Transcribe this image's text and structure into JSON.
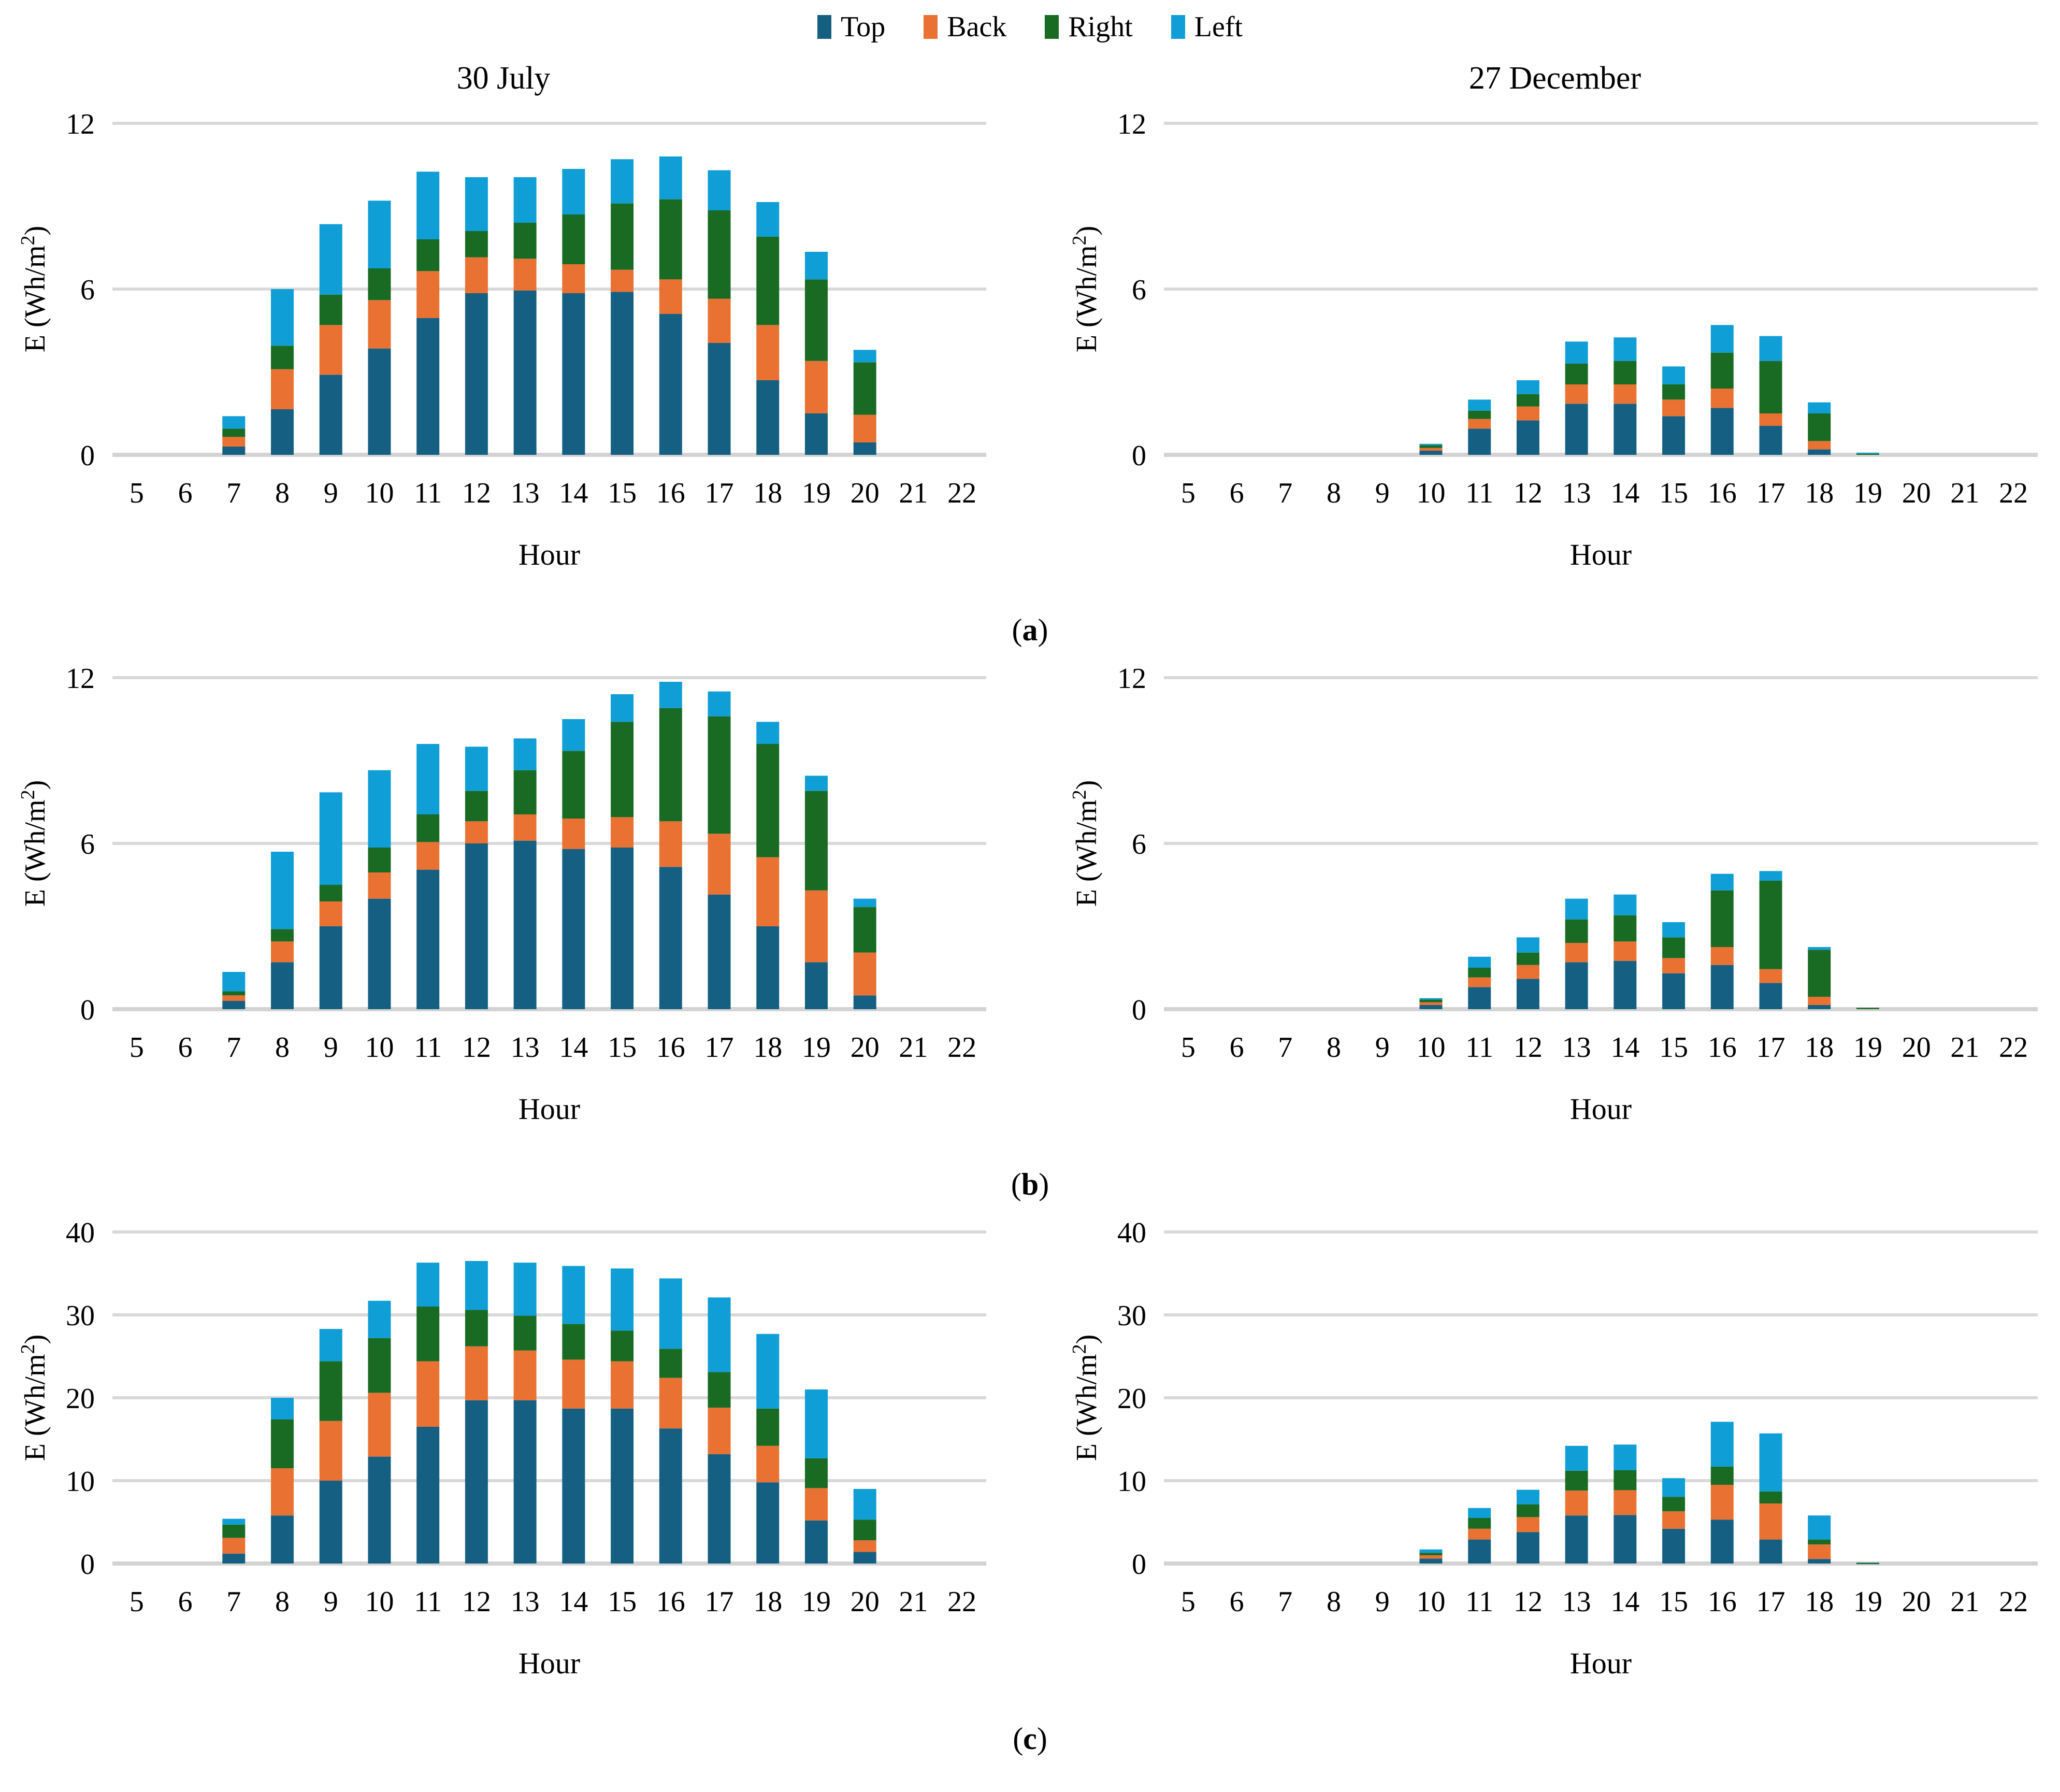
{
  "legend": {
    "items": [
      {
        "label": "Top",
        "color": "#156082"
      },
      {
        "label": "Back",
        "color": "#E97132"
      },
      {
        "label": "Right",
        "color": "#196B24"
      },
      {
        "label": "Left",
        "color": "#0F9ED5"
      }
    ]
  },
  "column_titles": [
    "30 July",
    "27 December"
  ],
  "captions": [
    {
      "open": "(",
      "letter": "a",
      "close": ")"
    },
    {
      "open": "(",
      "letter": "b",
      "close": ")"
    },
    {
      "open": "(",
      "letter": "c",
      "close": ")"
    }
  ],
  "axes": {
    "x_label": "Hour",
    "y_label_parts": [
      "E (Wh/m",
      "2",
      ")"
    ]
  },
  "style": {
    "grid_color": "#D9D9D9",
    "baseline_color": "#D3D3D3",
    "text_color": "#000000",
    "background": "#FFFFFF"
  },
  "hours": [
    5,
    6,
    7,
    8,
    9,
    10,
    11,
    12,
    13,
    14,
    15,
    16,
    17,
    18,
    19,
    20,
    21,
    22
  ],
  "chart_data": [
    {
      "id": "july-a",
      "type": "bar",
      "stacked": true,
      "panel": "a",
      "title": "30 July",
      "xlabel": "Hour",
      "ylabel": "E (Wh/m2)",
      "ylim": [
        0,
        12
      ],
      "yticks": [
        0,
        6,
        12
      ],
      "grid": true,
      "legend_position": "top",
      "categories": [
        5,
        6,
        7,
        8,
        9,
        10,
        11,
        12,
        13,
        14,
        15,
        16,
        17,
        18,
        19,
        20,
        21,
        22
      ],
      "series": [
        {
          "name": "Top",
          "color": "#156082",
          "values": [
            0,
            0,
            0.3,
            1.65,
            2.9,
            3.85,
            4.95,
            5.85,
            5.95,
            5.85,
            5.9,
            5.1,
            4.05,
            2.7,
            1.5,
            0.45,
            0,
            0
          ]
        },
        {
          "name": "Back",
          "color": "#E97132",
          "values": [
            0,
            0,
            0.35,
            1.45,
            1.8,
            1.75,
            1.7,
            1.3,
            1.15,
            1.05,
            0.8,
            1.25,
            1.6,
            2.0,
            1.9,
            1.0,
            0,
            0
          ]
        },
        {
          "name": "Right",
          "color": "#196B24",
          "values": [
            0,
            0,
            0.3,
            0.85,
            1.1,
            1.15,
            1.15,
            0.95,
            1.3,
            1.8,
            2.4,
            2.9,
            3.2,
            3.2,
            2.95,
            1.9,
            0,
            0
          ]
        },
        {
          "name": "Left",
          "color": "#0F9ED5",
          "values": [
            0,
            0,
            0.45,
            2.05,
            2.55,
            2.45,
            2.45,
            1.95,
            1.65,
            1.65,
            1.6,
            1.55,
            1.45,
            1.25,
            1.0,
            0.45,
            0,
            0
          ]
        }
      ]
    },
    {
      "id": "december-a",
      "type": "bar",
      "stacked": true,
      "panel": "a",
      "title": "27 December",
      "xlabel": "Hour",
      "ylabel": "E (Wh/m2)",
      "ylim": [
        0,
        12
      ],
      "yticks": [
        0,
        6,
        12
      ],
      "grid": true,
      "legend_position": "top",
      "categories": [
        5,
        6,
        7,
        8,
        9,
        10,
        11,
        12,
        13,
        14,
        15,
        16,
        17,
        18,
        19,
        20,
        21,
        22
      ],
      "series": [
        {
          "name": "Top",
          "color": "#156082",
          "values": [
            0,
            0,
            0,
            0,
            0,
            0.15,
            0.95,
            1.25,
            1.85,
            1.85,
            1.4,
            1.7,
            1.05,
            0.2,
            0,
            0,
            0,
            0
          ]
        },
        {
          "name": "Back",
          "color": "#E97132",
          "values": [
            0,
            0,
            0,
            0,
            0,
            0.1,
            0.35,
            0.5,
            0.7,
            0.7,
            0.6,
            0.7,
            0.45,
            0.3,
            0,
            0,
            0,
            0
          ]
        },
        {
          "name": "Right",
          "color": "#196B24",
          "values": [
            0,
            0,
            0,
            0,
            0,
            0.1,
            0.3,
            0.45,
            0.75,
            0.85,
            0.55,
            1.3,
            1.9,
            1.0,
            0.04,
            0,
            0,
            0
          ]
        },
        {
          "name": "Left",
          "color": "#0F9ED5",
          "values": [
            0,
            0,
            0,
            0,
            0,
            0.05,
            0.4,
            0.5,
            0.8,
            0.85,
            0.65,
            1.0,
            0.9,
            0.4,
            0.04,
            0,
            0,
            0
          ]
        }
      ]
    },
    {
      "id": "july-b",
      "type": "bar",
      "stacked": true,
      "panel": "b",
      "title": "30 July",
      "xlabel": "Hour",
      "ylabel": "E (Wh/m2)",
      "ylim": [
        0,
        12
      ],
      "yticks": [
        0,
        6,
        12
      ],
      "grid": true,
      "legend_position": "top",
      "categories": [
        5,
        6,
        7,
        8,
        9,
        10,
        11,
        12,
        13,
        14,
        15,
        16,
        17,
        18,
        19,
        20,
        21,
        22
      ],
      "series": [
        {
          "name": "Top",
          "color": "#156082",
          "values": [
            0,
            0,
            0.3,
            1.7,
            3.0,
            4.0,
            5.05,
            6.0,
            6.1,
            5.8,
            5.85,
            5.15,
            4.15,
            3.0,
            1.7,
            0.5,
            0,
            0
          ]
        },
        {
          "name": "Back",
          "color": "#E97132",
          "values": [
            0,
            0,
            0.2,
            0.75,
            0.9,
            0.95,
            1.0,
            0.8,
            0.95,
            1.1,
            1.1,
            1.65,
            2.2,
            2.5,
            2.6,
            1.55,
            0,
            0
          ]
        },
        {
          "name": "Right",
          "color": "#196B24",
          "values": [
            0,
            0,
            0.15,
            0.45,
            0.6,
            0.9,
            1.0,
            1.1,
            1.6,
            2.45,
            3.45,
            4.1,
            4.25,
            4.1,
            3.6,
            1.65,
            0,
            0
          ]
        },
        {
          "name": "Left",
          "color": "#0F9ED5",
          "values": [
            0,
            0,
            0.7,
            2.8,
            3.35,
            2.8,
            2.55,
            1.6,
            1.15,
            1.15,
            1.0,
            0.95,
            0.9,
            0.8,
            0.55,
            0.3,
            0,
            0
          ]
        }
      ]
    },
    {
      "id": "december-b",
      "type": "bar",
      "stacked": true,
      "panel": "b",
      "title": "27 December",
      "xlabel": "Hour",
      "ylabel": "E (Wh/m2)",
      "ylim": [
        0,
        12
      ],
      "yticks": [
        0,
        6,
        12
      ],
      "grid": true,
      "legend_position": "top",
      "categories": [
        5,
        6,
        7,
        8,
        9,
        10,
        11,
        12,
        13,
        14,
        15,
        16,
        17,
        18,
        19,
        20,
        21,
        22
      ],
      "series": [
        {
          "name": "Top",
          "color": "#156082",
          "values": [
            0,
            0,
            0,
            0,
            0,
            0.15,
            0.8,
            1.1,
            1.7,
            1.75,
            1.3,
            1.6,
            0.95,
            0.15,
            0,
            0,
            0,
            0
          ]
        },
        {
          "name": "Back",
          "color": "#E97132",
          "values": [
            0,
            0,
            0,
            0,
            0,
            0.1,
            0.35,
            0.5,
            0.7,
            0.7,
            0.55,
            0.65,
            0.5,
            0.3,
            0,
            0,
            0,
            0
          ]
        },
        {
          "name": "Right",
          "color": "#196B24",
          "values": [
            0,
            0,
            0,
            0,
            0,
            0.1,
            0.35,
            0.45,
            0.85,
            0.95,
            0.75,
            2.05,
            3.2,
            1.7,
            0.05,
            0,
            0,
            0
          ]
        },
        {
          "name": "Left",
          "color": "#0F9ED5",
          "values": [
            0,
            0,
            0,
            0,
            0,
            0.05,
            0.4,
            0.55,
            0.75,
            0.75,
            0.55,
            0.6,
            0.35,
            0.1,
            0,
            0,
            0,
            0
          ]
        }
      ]
    },
    {
      "id": "july-c",
      "type": "bar",
      "stacked": true,
      "panel": "c",
      "title": "30 July",
      "xlabel": "Hour",
      "ylabel": "E (Wh/m2)",
      "ylim": [
        0,
        40
      ],
      "yticks": [
        0,
        10,
        20,
        30,
        40
      ],
      "grid": true,
      "legend_position": "top",
      "categories": [
        5,
        6,
        7,
        8,
        9,
        10,
        11,
        12,
        13,
        14,
        15,
        16,
        17,
        18,
        19,
        20,
        21,
        22
      ],
      "series": [
        {
          "name": "Top",
          "color": "#156082",
          "values": [
            0,
            0,
            1.2,
            5.8,
            10.0,
            12.9,
            16.5,
            19.7,
            19.7,
            18.7,
            18.7,
            16.3,
            13.2,
            9.8,
            5.2,
            1.4,
            0,
            0
          ]
        },
        {
          "name": "Back",
          "color": "#E97132",
          "values": [
            0,
            0,
            1.9,
            5.7,
            7.2,
            7.7,
            7.9,
            6.5,
            6.0,
            5.9,
            5.7,
            6.1,
            5.6,
            4.4,
            3.9,
            1.4,
            0,
            0
          ]
        },
        {
          "name": "Right",
          "color": "#196B24",
          "values": [
            0,
            0,
            1.6,
            5.9,
            7.2,
            6.6,
            6.6,
            4.4,
            4.2,
            4.3,
            3.7,
            3.5,
            4.3,
            4.5,
            3.6,
            2.5,
            0,
            0
          ]
        },
        {
          "name": "Left",
          "color": "#0F9ED5",
          "values": [
            0,
            0,
            0.7,
            2.6,
            3.9,
            4.5,
            5.3,
            5.9,
            6.4,
            7.0,
            7.5,
            8.5,
            9.0,
            9.0,
            8.3,
            3.7,
            0,
            0
          ]
        }
      ]
    },
    {
      "id": "december-c",
      "type": "bar",
      "stacked": true,
      "panel": "c",
      "title": "27 December",
      "xlabel": "Hour",
      "ylabel": "E (Wh/m2)",
      "ylim": [
        0,
        40
      ],
      "yticks": [
        0,
        10,
        20,
        30,
        40
      ],
      "grid": true,
      "legend_position": "top",
      "categories": [
        5,
        6,
        7,
        8,
        9,
        10,
        11,
        12,
        13,
        14,
        15,
        16,
        17,
        18,
        19,
        20,
        21,
        22
      ],
      "series": [
        {
          "name": "Top",
          "color": "#156082",
          "values": [
            0,
            0,
            0,
            0,
            0,
            0.6,
            2.9,
            3.8,
            5.8,
            5.85,
            4.2,
            5.3,
            2.9,
            0.55,
            0.05,
            0,
            0,
            0
          ]
        },
        {
          "name": "Back",
          "color": "#E97132",
          "values": [
            0,
            0,
            0,
            0,
            0,
            0.4,
            1.3,
            1.8,
            3.0,
            3.0,
            2.1,
            4.2,
            4.35,
            1.75,
            0,
            0,
            0,
            0
          ]
        },
        {
          "name": "Right",
          "color": "#196B24",
          "values": [
            0,
            0,
            0,
            0,
            0,
            0.3,
            1.3,
            1.55,
            2.4,
            2.4,
            1.75,
            2.2,
            1.45,
            0.6,
            0.05,
            0,
            0,
            0
          ]
        },
        {
          "name": "Left",
          "color": "#0F9ED5",
          "values": [
            0,
            0,
            0,
            0,
            0,
            0.4,
            1.2,
            1.75,
            3.0,
            3.1,
            2.25,
            5.4,
            7.0,
            2.9,
            0,
            0,
            0,
            0
          ]
        }
      ]
    }
  ]
}
